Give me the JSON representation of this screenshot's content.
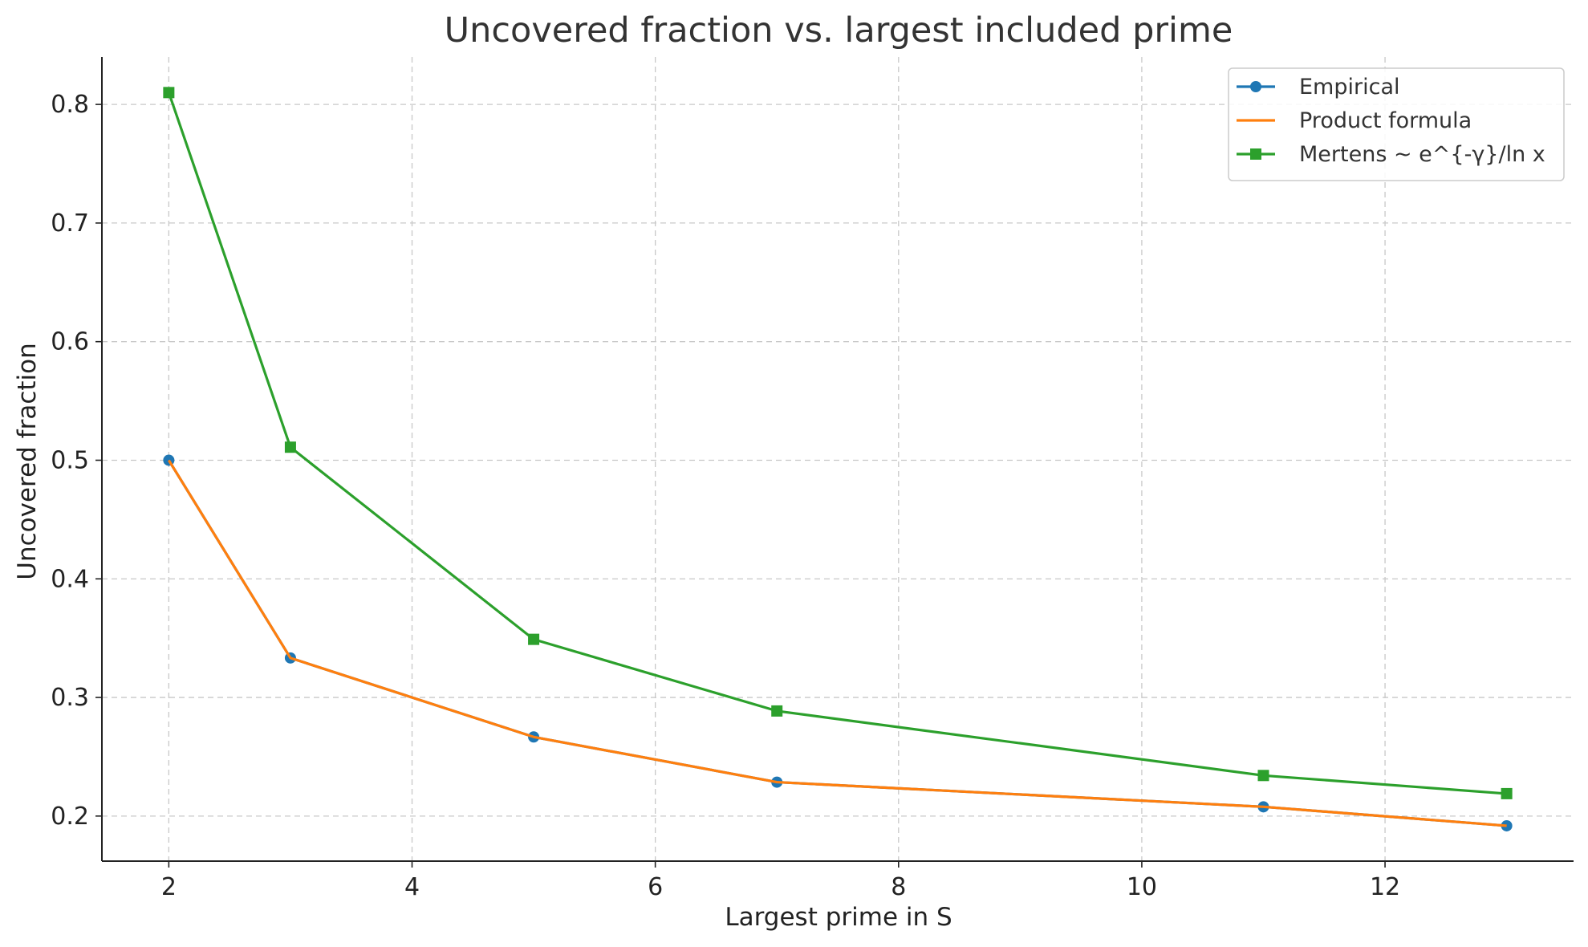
{
  "chart_data": {
    "type": "line",
    "title": "Uncovered fraction vs. largest included prime",
    "xlabel": "Largest prime in S",
    "ylabel": "Uncovered fraction",
    "xlim": [
      1.45,
      13.55
    ],
    "ylim": [
      0.162,
      0.84
    ],
    "xticks": [
      2,
      4,
      6,
      8,
      10,
      12
    ],
    "yticks": [
      0.2,
      0.3,
      0.4,
      0.5,
      0.6,
      0.7,
      0.8
    ],
    "grid": true,
    "legend_position": "top-right",
    "x": [
      2,
      3,
      5,
      7,
      11,
      13
    ],
    "series": [
      {
        "name": "Empirical",
        "values": [
          0.5,
          0.3333,
          0.2667,
          0.2286,
          0.2078,
          0.1918
        ],
        "color": "#1f77b4",
        "marker": "circle"
      },
      {
        "name": "Product formula",
        "values": [
          0.5,
          0.3333,
          0.2667,
          0.2286,
          0.2078,
          0.1918
        ],
        "color": "#ff7f0e",
        "marker": "none"
      },
      {
        "name": "Mertens ~ e^{-γ}/ln x",
        "values": [
          0.81,
          0.511,
          0.349,
          0.2886,
          0.2342,
          0.2189
        ],
        "color": "#2ca02c",
        "marker": "square"
      }
    ]
  }
}
